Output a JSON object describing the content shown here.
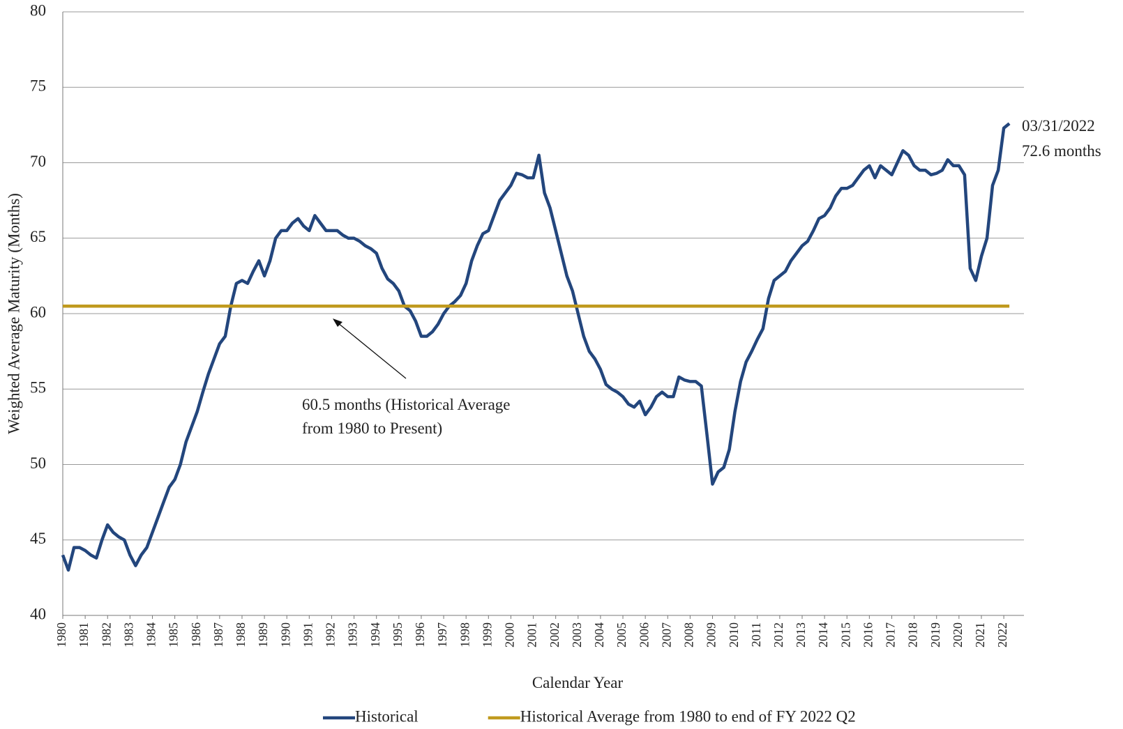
{
  "chart_data": {
    "type": "line",
    "y_label": "Weighted Average Maturity (Months)",
    "x_label": "Calendar Year",
    "xlim": [
      1980,
      2022.9
    ],
    "ylim": [
      40,
      80
    ],
    "yticks": [
      40,
      45,
      50,
      55,
      60,
      65,
      70,
      75,
      80
    ],
    "xticks": [
      1980,
      1981,
      1982,
      1983,
      1984,
      1985,
      1986,
      1987,
      1988,
      1989,
      1990,
      1991,
      1992,
      1993,
      1994,
      1995,
      1996,
      1997,
      1998,
      1999,
      2000,
      2001,
      2002,
      2003,
      2004,
      2005,
      2006,
      2007,
      2008,
      2009,
      2010,
      2011,
      2012,
      2013,
      2014,
      2015,
      2016,
      2017,
      2018,
      2019,
      2020,
      2021,
      2022
    ],
    "grid": true,
    "series": [
      {
        "name": "Historical",
        "color": "#23467d",
        "x": [
          1980,
          1980.25,
          1980.5,
          1980.75,
          1981,
          1981.25,
          1981.5,
          1981.75,
          1982,
          1982.25,
          1982.5,
          1982.75,
          1983,
          1983.25,
          1983.5,
          1983.75,
          1984,
          1984.25,
          1984.5,
          1984.75,
          1985,
          1985.25,
          1985.5,
          1985.75,
          1986,
          1986.25,
          1986.5,
          1986.75,
          1987,
          1987.25,
          1987.5,
          1987.75,
          1988,
          1988.25,
          1988.5,
          1988.75,
          1989,
          1989.25,
          1989.5,
          1989.75,
          1990,
          1990.25,
          1990.5,
          1990.75,
          1991,
          1991.25,
          1991.5,
          1991.75,
          1992,
          1992.25,
          1992.5,
          1992.75,
          1993,
          1993.25,
          1993.5,
          1993.75,
          1994,
          1994.25,
          1994.5,
          1994.75,
          1995,
          1995.25,
          1995.5,
          1995.75,
          1996,
          1996.25,
          1996.5,
          1996.75,
          1997,
          1997.25,
          1997.5,
          1997.75,
          1998,
          1998.25,
          1998.5,
          1998.75,
          1999,
          1999.25,
          1999.5,
          1999.75,
          2000,
          2000.25,
          2000.5,
          2000.75,
          2001,
          2001.25,
          2001.5,
          2001.75,
          2002,
          2002.25,
          2002.5,
          2002.75,
          2003,
          2003.25,
          2003.5,
          2003.75,
          2004,
          2004.25,
          2004.5,
          2004.75,
          2005,
          2005.25,
          2005.5,
          2005.75,
          2006,
          2006.25,
          2006.5,
          2006.75,
          2007,
          2007.25,
          2007.5,
          2007.75,
          2008,
          2008.25,
          2008.5,
          2008.75,
          2009,
          2009.25,
          2009.5,
          2009.75,
          2010,
          2010.25,
          2010.5,
          2010.75,
          2011,
          2011.25,
          2011.5,
          2011.75,
          2012,
          2012.25,
          2012.5,
          2012.75,
          2013,
          2013.25,
          2013.5,
          2013.75,
          2014,
          2014.25,
          2014.5,
          2014.75,
          2015,
          2015.25,
          2015.5,
          2015.75,
          2016,
          2016.25,
          2016.5,
          2016.75,
          2017,
          2017.25,
          2017.5,
          2017.75,
          2018,
          2018.25,
          2018.5,
          2018.75,
          2019,
          2019.25,
          2019.5,
          2019.75,
          2020,
          2020.25,
          2020.5,
          2020.75,
          2021,
          2021.25,
          2021.5,
          2021.75,
          2022,
          2022.25
        ],
        "values": [
          44,
          43,
          44.5,
          44.5,
          44.3,
          44,
          43.8,
          45,
          46,
          45.5,
          45.2,
          45,
          44,
          43.3,
          44,
          44.5,
          45.5,
          46.5,
          47.5,
          48.5,
          49,
          50,
          51.5,
          52.5,
          53.5,
          54.8,
          56,
          57,
          58,
          58.5,
          60.5,
          62,
          62.2,
          62,
          62.8,
          63.5,
          62.5,
          63.5,
          65,
          65.5,
          65.5,
          66,
          66.3,
          65.8,
          65.5,
          66.5,
          66,
          65.5,
          65.5,
          65.5,
          65.2,
          65,
          65,
          64.8,
          64.5,
          64.3,
          64,
          63,
          62.3,
          62,
          61.5,
          60.5,
          60.2,
          59.5,
          58.5,
          58.5,
          58.8,
          59.3,
          60,
          60.5,
          60.8,
          61.2,
          62,
          63.5,
          64.5,
          65.3,
          65.5,
          66.5,
          67.5,
          68,
          68.5,
          69.3,
          69.2,
          69,
          69,
          70.5,
          68,
          67,
          65.5,
          64,
          62.5,
          61.5,
          60,
          58.5,
          57.5,
          57,
          56.3,
          55.3,
          55,
          54.8,
          54.5,
          54,
          53.8,
          54.2,
          53.3,
          53.8,
          54.5,
          54.8,
          54.5,
          54.5,
          55.8,
          55.6,
          55.5,
          55.5,
          55.2,
          52,
          48.7,
          49.5,
          49.8,
          51,
          53.5,
          55.5,
          56.8,
          57.5,
          58.3,
          59,
          61,
          62.2,
          62.5,
          62.8,
          63.5,
          64,
          64.5,
          64.8,
          65.5,
          66.3,
          66.5,
          67,
          67.8,
          68.3,
          68.3,
          68.5,
          69,
          69.5,
          69.8,
          69,
          69.8,
          69.5,
          69.2,
          70,
          70.8,
          70.5,
          69.8,
          69.5,
          69.5,
          69.2,
          69.3,
          69.5,
          70.2,
          69.8,
          69.8,
          69.2,
          63,
          62.2,
          63.8,
          65,
          68.5,
          69.5,
          72.3,
          72.6
        ]
      },
      {
        "name": "Historical Average from 1980 to end of FY 2022 Q2",
        "color": "#c09a1e",
        "x": [
          1980,
          2022.25
        ],
        "values": [
          60.5,
          60.5
        ]
      }
    ],
    "annotations": [
      {
        "lines": [
          "60.5 months (Historical Average",
          "from 1980 to Present)"
        ]
      },
      {
        "lines": [
          "03/31/2022",
          "72.6 months"
        ]
      }
    ]
  }
}
